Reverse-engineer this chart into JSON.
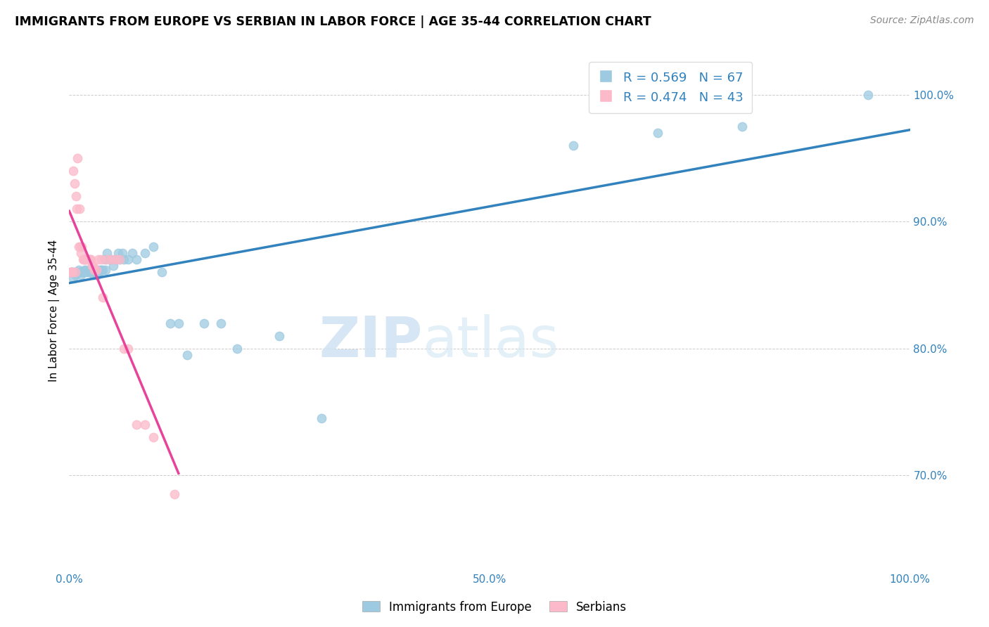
{
  "title": "IMMIGRANTS FROM EUROPE VS SERBIAN IN LABOR FORCE | AGE 35-44 CORRELATION CHART",
  "source": "Source: ZipAtlas.com",
  "ylabel": "In Labor Force | Age 35-44",
  "xlim": [
    0.0,
    1.0
  ],
  "ylim": [
    0.625,
    1.035
  ],
  "xtick_positions": [
    0.0,
    0.1,
    0.2,
    0.3,
    0.4,
    0.5,
    0.6,
    0.7,
    0.8,
    0.9,
    1.0
  ],
  "xtick_labels": [
    "0.0%",
    "",
    "",
    "",
    "",
    "50.0%",
    "",
    "",
    "",
    "",
    "100.0%"
  ],
  "ytick_labels": [
    "70.0%",
    "80.0%",
    "90.0%",
    "100.0%"
  ],
  "yticks": [
    0.7,
    0.8,
    0.9,
    1.0
  ],
  "blue_R": 0.569,
  "blue_N": 67,
  "pink_R": 0.474,
  "pink_N": 43,
  "blue_color": "#9ecae1",
  "pink_color": "#fcb9c9",
  "line_blue": "#3182bd",
  "line_pink": "#e8439a",
  "legend_blue": "Immigrants from Europe",
  "legend_pink": "Serbians",
  "watermark_zip": "ZIP",
  "watermark_atlas": "atlas",
  "blue_points_x": [
    0.002,
    0.003,
    0.004,
    0.005,
    0.006,
    0.007,
    0.008,
    0.009,
    0.01,
    0.011,
    0.012,
    0.013,
    0.014,
    0.015,
    0.016,
    0.017,
    0.018,
    0.019,
    0.02,
    0.021,
    0.022,
    0.023,
    0.024,
    0.025,
    0.026,
    0.027,
    0.028,
    0.029,
    0.03,
    0.031,
    0.032,
    0.033,
    0.034,
    0.035,
    0.036,
    0.037,
    0.038,
    0.04,
    0.042,
    0.043,
    0.045,
    0.048,
    0.05,
    0.052,
    0.055,
    0.058,
    0.06,
    0.063,
    0.065,
    0.07,
    0.075,
    0.08,
    0.09,
    0.1,
    0.11,
    0.12,
    0.13,
    0.14,
    0.16,
    0.18,
    0.2,
    0.25,
    0.3,
    0.6,
    0.7,
    0.8,
    0.95
  ],
  "blue_points_y": [
    0.86,
    0.86,
    0.86,
    0.855,
    0.86,
    0.858,
    0.86,
    0.86,
    0.86,
    0.862,
    0.86,
    0.86,
    0.858,
    0.86,
    0.86,
    0.86,
    0.862,
    0.86,
    0.862,
    0.86,
    0.86,
    0.862,
    0.86,
    0.86,
    0.862,
    0.862,
    0.86,
    0.858,
    0.862,
    0.86,
    0.862,
    0.858,
    0.86,
    0.862,
    0.86,
    0.862,
    0.862,
    0.862,
    0.87,
    0.862,
    0.875,
    0.87,
    0.87,
    0.865,
    0.87,
    0.875,
    0.87,
    0.875,
    0.87,
    0.87,
    0.875,
    0.87,
    0.875,
    0.88,
    0.86,
    0.82,
    0.82,
    0.795,
    0.82,
    0.82,
    0.8,
    0.81,
    0.745,
    0.96,
    0.97,
    0.975,
    1.0
  ],
  "pink_points_x": [
    0.001,
    0.002,
    0.003,
    0.004,
    0.005,
    0.006,
    0.007,
    0.008,
    0.009,
    0.01,
    0.011,
    0.012,
    0.013,
    0.014,
    0.015,
    0.016,
    0.017,
    0.018,
    0.019,
    0.02,
    0.021,
    0.022,
    0.023,
    0.024,
    0.025,
    0.026,
    0.027,
    0.028,
    0.03,
    0.032,
    0.035,
    0.038,
    0.04,
    0.045,
    0.05,
    0.055,
    0.06,
    0.065,
    0.07,
    0.08,
    0.09,
    0.1,
    0.125
  ],
  "pink_points_y": [
    0.86,
    0.86,
    0.86,
    0.86,
    0.94,
    0.93,
    0.86,
    0.92,
    0.91,
    0.95,
    0.88,
    0.91,
    0.88,
    0.875,
    0.88,
    0.87,
    0.87,
    0.87,
    0.87,
    0.87,
    0.87,
    0.87,
    0.87,
    0.87,
    0.87,
    0.87,
    0.865,
    0.865,
    0.862,
    0.862,
    0.87,
    0.87,
    0.84,
    0.87,
    0.87,
    0.87,
    0.87,
    0.8,
    0.8,
    0.74,
    0.74,
    0.73,
    0.685
  ]
}
